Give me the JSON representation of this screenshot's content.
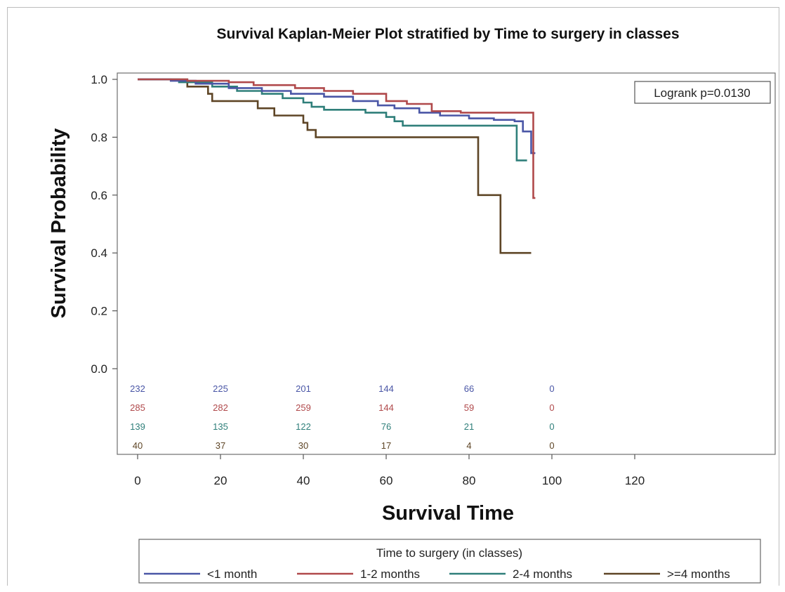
{
  "chart_data": {
    "type": "line",
    "subtype": "kaplan-meier step",
    "title": "Survival Kaplan-Meier Plot stratified by Time to surgery in classes",
    "xlabel": "Survival Time",
    "ylabel": "Survival Probability",
    "xlim": [
      0,
      120
    ],
    "ylim": [
      0,
      1.0
    ],
    "xticks": [
      "0",
      "20",
      "40",
      "60",
      "80",
      "100",
      "120"
    ],
    "yticks": [
      "0.0",
      "0.2",
      "0.4",
      "0.6",
      "0.8",
      "1.0"
    ],
    "grid": false,
    "annotation": "Logrank p=0.0130",
    "legend": {
      "title": "Time to surgery (in classes)",
      "position": "bottom",
      "entries": [
        "<1 month",
        "1-2 months",
        "2-4 months",
        ">=4 months"
      ]
    },
    "risk_table": {
      "times": [
        0,
        20,
        40,
        60,
        80,
        100
      ],
      "rows": [
        {
          "series": "<1 month",
          "counts": [
            "232",
            "225",
            "201",
            "144",
            "66",
            "0"
          ]
        },
        {
          "series": "1-2 months",
          "counts": [
            "285",
            "282",
            "259",
            "144",
            "59",
            "0"
          ]
        },
        {
          "series": "2-4 months",
          "counts": [
            "139",
            "135",
            "122",
            "76",
            "21",
            "0"
          ]
        },
        {
          "series": ">=4 months",
          "counts": [
            "40",
            "37",
            "30",
            "17",
            "4",
            "0"
          ]
        }
      ]
    },
    "series": [
      {
        "name": "<1 month",
        "color": "#4a56a6",
        "points": [
          [
            0,
            1.0
          ],
          [
            8,
            0.995
          ],
          [
            14,
            0.985
          ],
          [
            22,
            0.97
          ],
          [
            30,
            0.96
          ],
          [
            37,
            0.95
          ],
          [
            45,
            0.94
          ],
          [
            52,
            0.925
          ],
          [
            58,
            0.91
          ],
          [
            62,
            0.9
          ],
          [
            68,
            0.885
          ],
          [
            73,
            0.875
          ],
          [
            80,
            0.865
          ],
          [
            86,
            0.86
          ],
          [
            91,
            0.855
          ],
          [
            93,
            0.82
          ],
          [
            95,
            0.745
          ],
          [
            96,
            0.745
          ]
        ]
      },
      {
        "name": "1-2 months",
        "color": "#b0494b",
        "points": [
          [
            0,
            1.0
          ],
          [
            12,
            0.995
          ],
          [
            22,
            0.99
          ],
          [
            28,
            0.98
          ],
          [
            38,
            0.97
          ],
          [
            45,
            0.96
          ],
          [
            52,
            0.95
          ],
          [
            60,
            0.925
          ],
          [
            65,
            0.915
          ],
          [
            71,
            0.89
          ],
          [
            78,
            0.885
          ],
          [
            95,
            0.885
          ],
          [
            95.5,
            0.59
          ],
          [
            96,
            0.59
          ]
        ]
      },
      {
        "name": "2-4 months",
        "color": "#2f7f7a",
        "points": [
          [
            0,
            1.0
          ],
          [
            10,
            0.99
          ],
          [
            18,
            0.975
          ],
          [
            24,
            0.96
          ],
          [
            30,
            0.95
          ],
          [
            35,
            0.935
          ],
          [
            40,
            0.92
          ],
          [
            42,
            0.905
          ],
          [
            45,
            0.895
          ],
          [
            55,
            0.885
          ],
          [
            60,
            0.87
          ],
          [
            62,
            0.855
          ],
          [
            64,
            0.84
          ],
          [
            91,
            0.84
          ],
          [
            91.5,
            0.72
          ],
          [
            94,
            0.72
          ]
        ]
      },
      {
        "name": ">=4 months",
        "color": "#5e4526",
        "points": [
          [
            0,
            1.0
          ],
          [
            12,
            0.975
          ],
          [
            17,
            0.95
          ],
          [
            18,
            0.925
          ],
          [
            29,
            0.9
          ],
          [
            33,
            0.875
          ],
          [
            40,
            0.85
          ],
          [
            41,
            0.825
          ],
          [
            43,
            0.8
          ],
          [
            82,
            0.8
          ],
          [
            82.2,
            0.6
          ],
          [
            87.5,
            0.6
          ],
          [
            87.6,
            0.4
          ],
          [
            95,
            0.4
          ]
        ]
      }
    ]
  }
}
